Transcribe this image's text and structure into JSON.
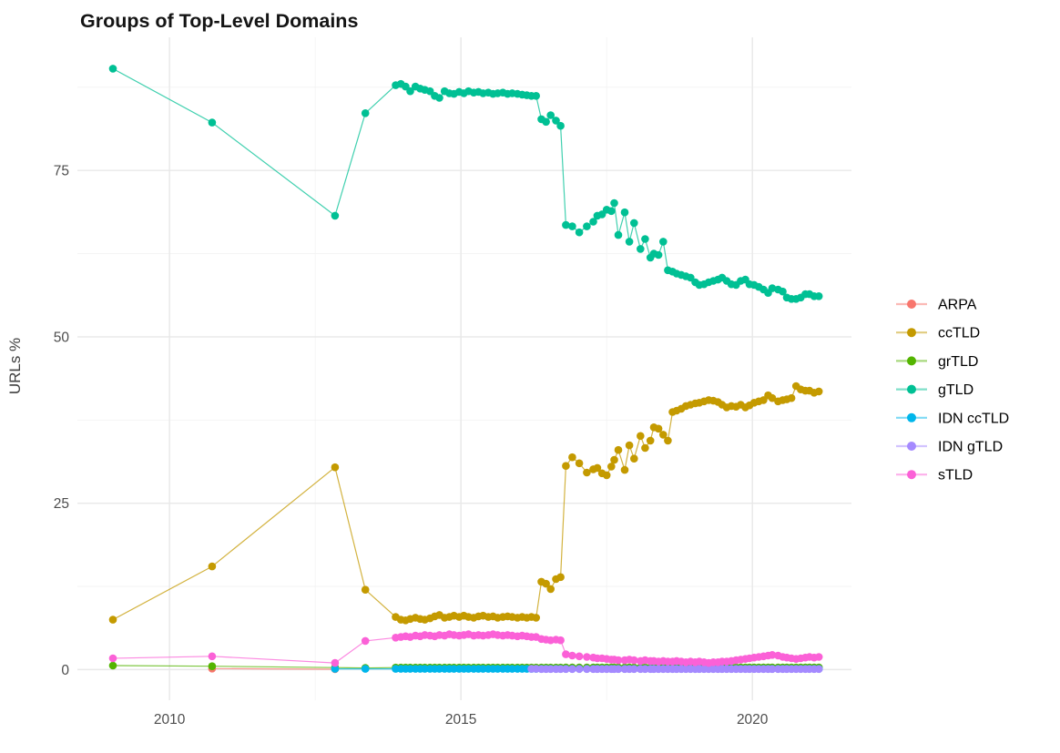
{
  "chart_data": {
    "type": "line",
    "title": "Groups of Top-Level Domains",
    "xlabel": "",
    "ylabel": "URLs %",
    "xlim": [
      2008.42,
      2021.7
    ],
    "ylim": [
      -4.6,
      95.0
    ],
    "grid": "on",
    "legend_position": "right",
    "x_ticks": [
      {
        "v": 2010,
        "label": "2010"
      },
      {
        "v": 2015,
        "label": "2015"
      },
      {
        "v": 2020,
        "label": "2020"
      }
    ],
    "y_ticks": [
      {
        "v": 0,
        "label": "0"
      },
      {
        "v": 25,
        "label": "25"
      },
      {
        "v": 50,
        "label": "50"
      },
      {
        "v": 75,
        "label": "75"
      }
    ],
    "x_minor_ticks": [
      2012.5,
      2017.5
    ],
    "y_minor_ticks": [
      12.5,
      37.5,
      62.5,
      87.5
    ],
    "grids": {
      "sparse": [
        2009.03,
        2010.73,
        2012.84,
        2013.36
      ],
      "dense1": [
        2013.88,
        2013.97,
        2014.05,
        2014.13,
        2014.22,
        2014.3,
        2014.38,
        2014.47,
        2014.55,
        2014.63,
        2014.72,
        2014.8,
        2014.88,
        2014.97,
        2015.05,
        2015.13,
        2015.22,
        2015.3,
        2015.38,
        2015.47,
        2015.55,
        2015.63,
        2015.72,
        2015.8,
        2015.88,
        2015.97,
        2016.05,
        2016.13,
        2016.21,
        2016.29
      ],
      "cluster": [
        2016.38,
        2016.46,
        2016.54,
        2016.63,
        2016.71
      ],
      "dense2": [
        2016.8,
        2016.91,
        2017.03,
        2017.16,
        2017.27,
        2017.34,
        2017.42,
        2017.5,
        2017.58,
        2017.63,
        2017.7,
        2017.81,
        2017.89,
        2017.97,
        2018.08,
        2018.16,
        2018.25,
        2018.31,
        2018.39,
        2018.47,
        2018.55,
        2018.63,
        2018.7,
        2018.78,
        2018.86,
        2018.94,
        2019.02,
        2019.09,
        2019.17,
        2019.25,
        2019.33,
        2019.41,
        2019.48,
        2019.56,
        2019.64,
        2019.72,
        2019.8,
        2019.88,
        2019.95,
        2020.03,
        2020.11,
        2020.19,
        2020.27,
        2020.34,
        2020.44,
        2020.52,
        2020.59,
        2020.67,
        2020.75,
        2020.83,
        2020.91,
        2020.98,
        2021.06,
        2021.14
      ]
    },
    "series": [
      {
        "name": "ARPA",
        "color": "#F8766D",
        "segments": [
          {
            "xy": [
              [
                2010.73,
                0.15
              ],
              [
                2012.84,
                0.05
              ]
            ]
          }
        ]
      },
      {
        "name": "ccTLD",
        "color": "#C49A00",
        "segments": [
          {
            "x": "sparse",
            "y": [
              7.5,
              15.5,
              30.4,
              12.0
            ]
          },
          {
            "x": "dense1",
            "y": [
              7.9,
              7.5,
              7.4,
              7.6,
              7.8,
              7.6,
              7.5,
              7.7,
              8.0,
              8.2,
              7.8,
              7.9,
              8.1,
              7.9,
              8.1,
              7.9,
              7.8,
              8.0,
              8.1,
              7.9,
              8.0,
              7.8,
              7.9,
              8.0,
              7.9,
              7.8,
              7.9,
              7.8,
              7.9,
              7.8
            ]
          },
          {
            "x": "cluster",
            "y": [
              13.2,
              12.9,
              12.1,
              13.6,
              13.9
            ]
          },
          {
            "x": "dense2",
            "y": [
              30.6,
              31.9,
              31.0,
              29.6,
              30.1,
              30.3,
              29.5,
              29.2,
              30.5,
              31.5,
              33.0,
              30.0,
              33.7,
              31.7,
              35.1,
              33.3,
              34.4,
              36.4,
              36.2,
              35.3,
              34.4,
              38.7,
              38.9,
              39.2,
              39.6,
              39.8,
              40.0,
              40.1,
              40.3,
              40.5,
              40.4,
              40.2,
              39.8,
              39.4,
              39.6,
              39.5,
              39.8,
              39.4,
              39.7,
              40.1,
              40.3,
              40.5,
              41.2,
              40.8,
              40.3,
              40.5,
              40.6,
              40.8,
              42.6,
              42.1,
              41.9,
              41.9,
              41.6,
              41.8
            ]
          }
        ]
      },
      {
        "name": "grTLD",
        "color": "#53B400",
        "segments": [
          {
            "x": "sparse",
            "y": [
              0.6,
              0.5,
              0.3,
              0.25
            ]
          },
          {
            "x": "dense1",
            "fill": 0.3
          },
          {
            "x": "cluster",
            "fill": 0.3
          },
          {
            "x": "dense2",
            "fill": 0.32
          }
        ]
      },
      {
        "name": "gTLD",
        "color": "#00C094",
        "segments": [
          {
            "x": "sparse",
            "y": [
              90.3,
              82.2,
              68.2,
              83.6
            ]
          },
          {
            "x": "dense1",
            "y": [
              87.8,
              88.0,
              87.6,
              86.9,
              87.6,
              87.3,
              87.1,
              86.9,
              86.2,
              85.9,
              86.9,
              86.6,
              86.5,
              86.8,
              86.6,
              86.9,
              86.7,
              86.8,
              86.6,
              86.7,
              86.5,
              86.6,
              86.7,
              86.5,
              86.6,
              86.5,
              86.4,
              86.3,
              86.2,
              86.2
            ]
          },
          {
            "x": "cluster",
            "y": [
              82.7,
              82.3,
              83.3,
              82.5,
              81.7
            ]
          },
          {
            "x": "dense2",
            "y": [
              66.8,
              66.6,
              65.7,
              66.6,
              67.3,
              68.2,
              68.4,
              69.1,
              68.9,
              70.1,
              65.3,
              68.7,
              64.3,
              67.1,
              63.2,
              64.7,
              61.9,
              62.5,
              62.3,
              64.3,
              60.0,
              59.8,
              59.5,
              59.3,
              59.1,
              58.9,
              58.2,
              57.8,
              57.9,
              58.2,
              58.4,
              58.6,
              58.9,
              58.4,
              57.9,
              57.8,
              58.4,
              58.6,
              57.9,
              57.8,
              57.5,
              57.1,
              56.6,
              57.3,
              57.1,
              56.8,
              55.9,
              55.7,
              55.7,
              55.9,
              56.4,
              56.4,
              56.1,
              56.1
            ]
          }
        ]
      },
      {
        "name": "IDN ccTLD",
        "color": "#00B6EB",
        "segments": [
          {
            "xy": [
              [
                2012.84,
                0.1
              ],
              [
                2013.36,
                0.1
              ]
            ]
          },
          {
            "x": "dense1",
            "fill": 0.1
          },
          {
            "x": "cluster",
            "fill": 0.1
          },
          {
            "x": "dense2",
            "fill": 0.1
          }
        ]
      },
      {
        "name": "IDN gTLD",
        "color": "#A58AFF",
        "segments": [
          {
            "xy": [
              [
                2016.21,
                0.1
              ],
              [
                2016.29,
                0.1
              ]
            ]
          },
          {
            "x": "cluster",
            "fill": 0.08
          },
          {
            "x": "dense2",
            "fill": 0.08
          }
        ]
      },
      {
        "name": "sTLD",
        "color": "#FB61D7",
        "segments": [
          {
            "x": "sparse",
            "y": [
              1.7,
              2.0,
              1.0,
              4.3
            ]
          },
          {
            "x": "dense1",
            "y": [
              4.8,
              4.9,
              5.0,
              4.9,
              5.1,
              5.0,
              5.2,
              5.1,
              5.0,
              5.2,
              5.1,
              5.3,
              5.2,
              5.1,
              5.2,
              5.3,
              5.1,
              5.2,
              5.1,
              5.2,
              5.3,
              5.2,
              5.1,
              5.2,
              5.1,
              5.0,
              5.1,
              5.0,
              4.9,
              4.9
            ]
          },
          {
            "x": "cluster",
            "y": [
              4.6,
              4.5,
              4.4,
              4.5,
              4.4
            ]
          },
          {
            "x": "dense2",
            "y": [
              2.3,
              2.1,
              2.0,
              1.9,
              1.8,
              1.7,
              1.7,
              1.6,
              1.5,
              1.5,
              1.4,
              1.4,
              1.5,
              1.4,
              1.3,
              1.4,
              1.3,
              1.3,
              1.2,
              1.3,
              1.2,
              1.2,
              1.3,
              1.2,
              1.1,
              1.2,
              1.1,
              1.2,
              1.1,
              1.0,
              1.1,
              1.1,
              1.2,
              1.2,
              1.3,
              1.4,
              1.5,
              1.6,
              1.7,
              1.8,
              1.9,
              2.0,
              2.1,
              2.2,
              2.1,
              1.9,
              1.8,
              1.7,
              1.6,
              1.7,
              1.8,
              1.9,
              1.8,
              1.9
            ]
          }
        ]
      }
    ],
    "legend": [
      {
        "label": "ARPA",
        "color": "#F8766D"
      },
      {
        "label": "ccTLD",
        "color": "#C49A00"
      },
      {
        "label": "grTLD",
        "color": "#53B400"
      },
      {
        "label": "gTLD",
        "color": "#00C094"
      },
      {
        "label": "IDN ccTLD",
        "color": "#00B6EB"
      },
      {
        "label": "IDN gTLD",
        "color": "#A58AFF"
      },
      {
        "label": "sTLD",
        "color": "#FB61D7"
      }
    ],
    "style": {
      "grid_major_color": "#e8e8e8",
      "grid_minor_color": "#f3f3f3",
      "tick_label_color": "#4d4d4d",
      "axis_title_color": "#404040",
      "title_color": "#141414",
      "legend_text_color": "#000000"
    }
  }
}
